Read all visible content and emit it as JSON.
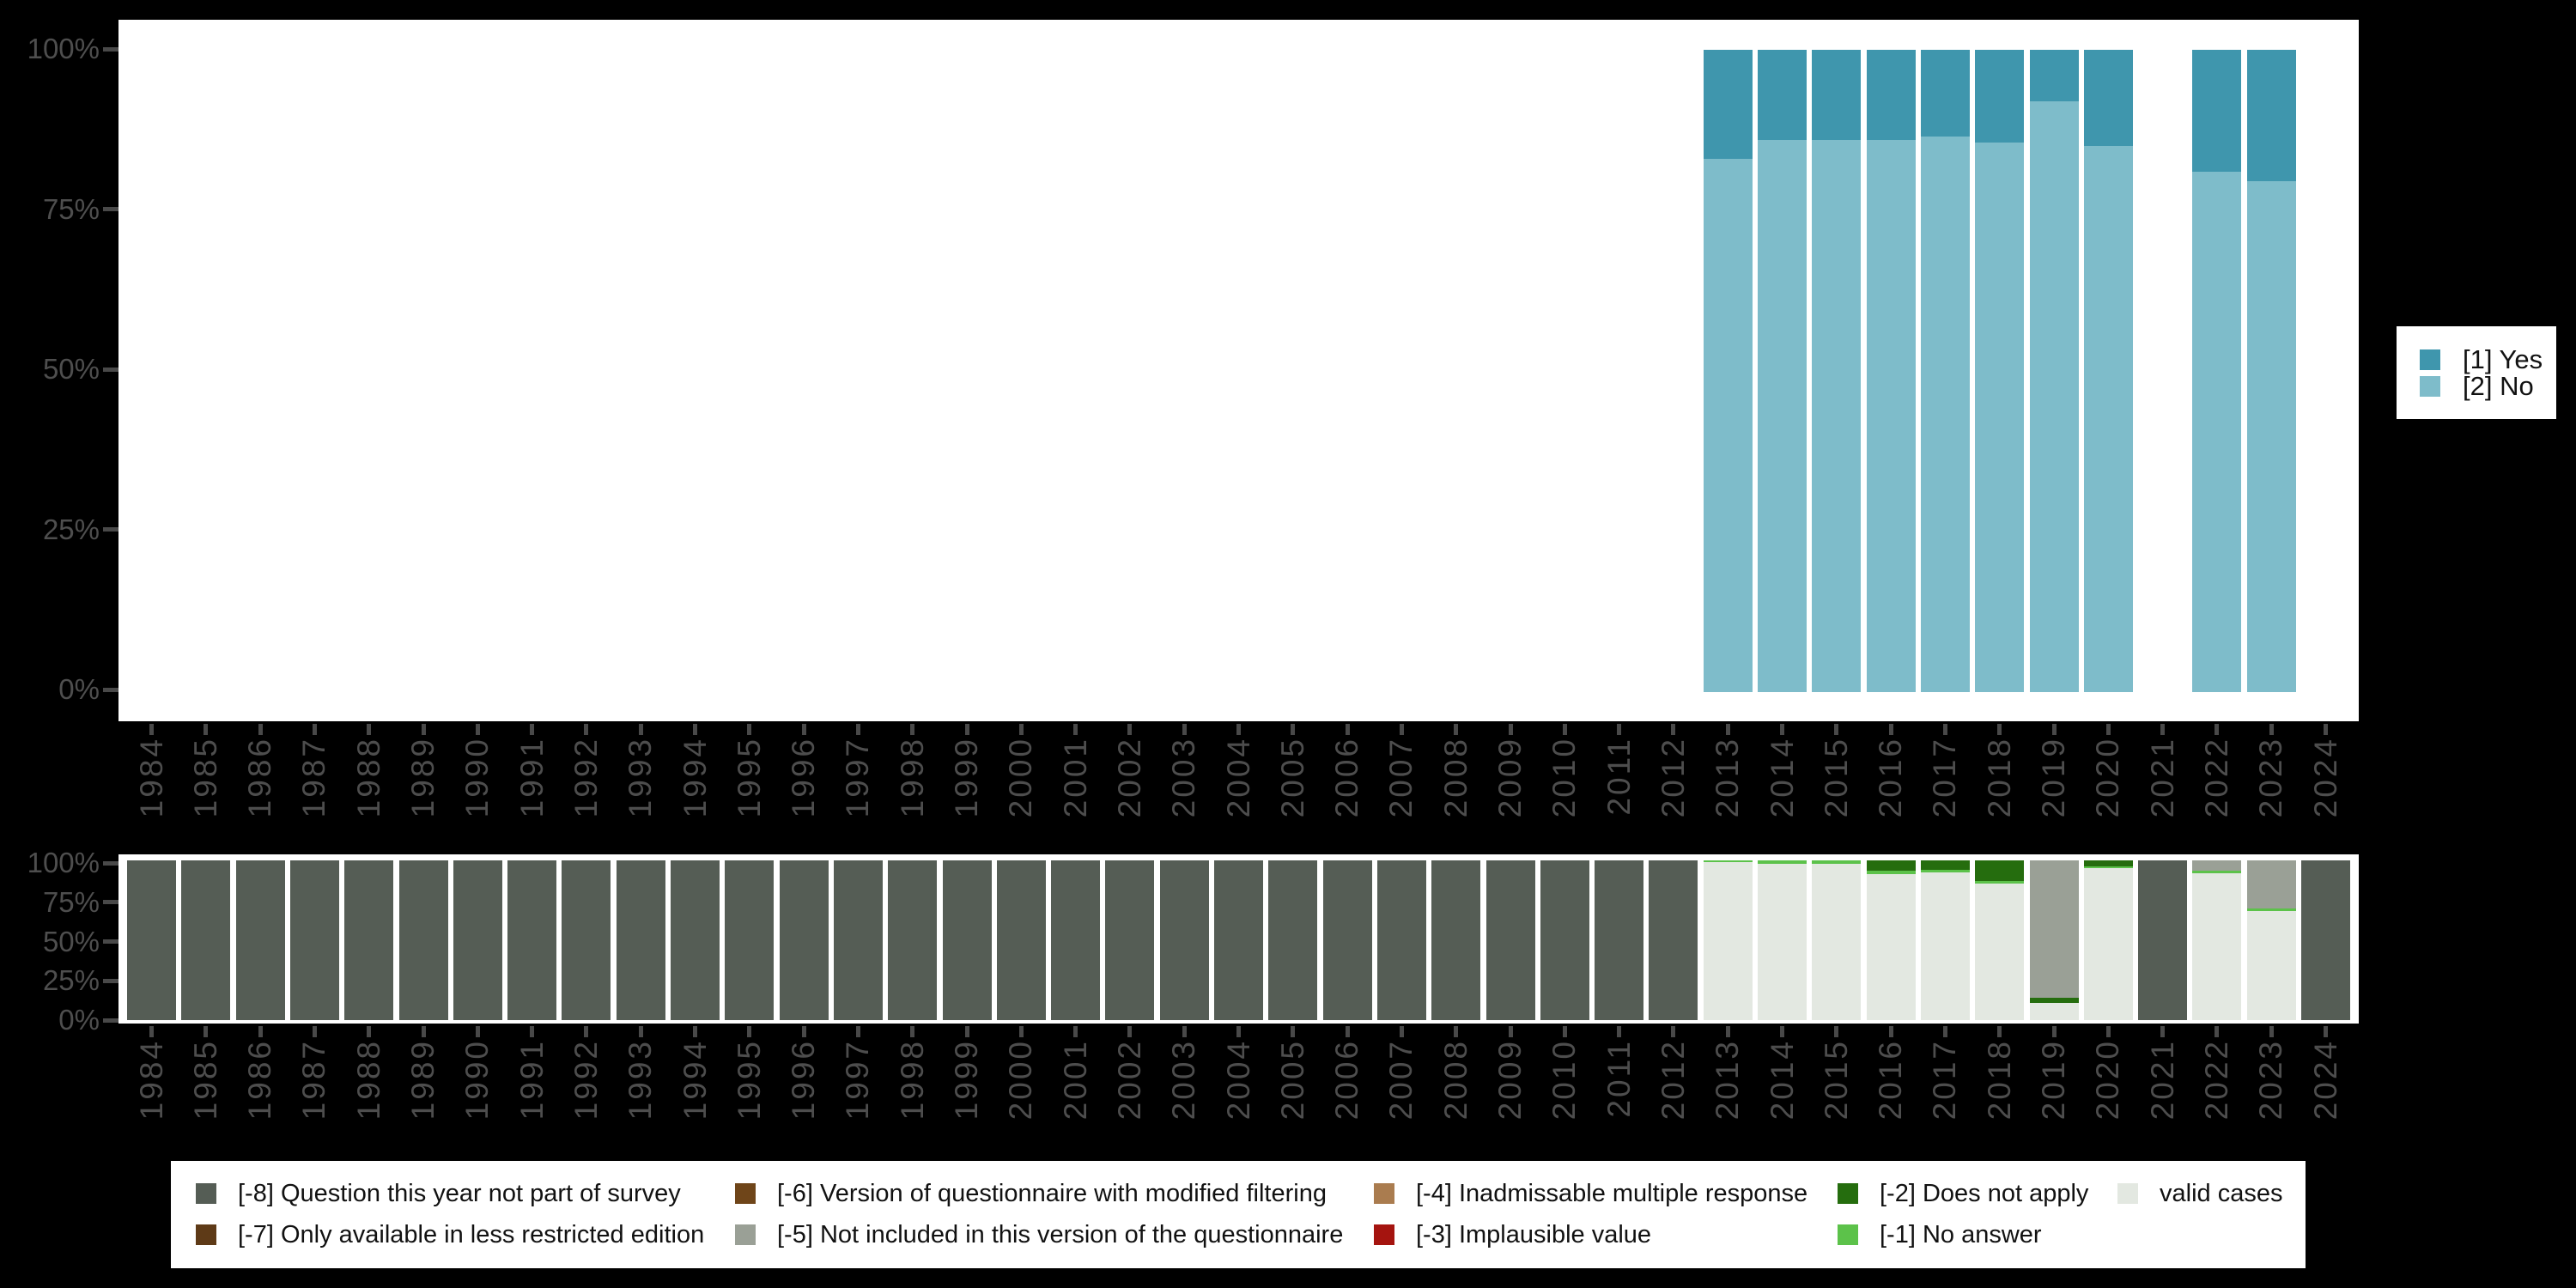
{
  "background": "#000000",
  "years": [
    "1984",
    "1985",
    "1986",
    "1987",
    "1988",
    "1989",
    "1990",
    "1991",
    "1992",
    "1993",
    "1994",
    "1995",
    "1996",
    "1997",
    "1998",
    "1999",
    "2000",
    "2001",
    "2002",
    "2003",
    "2004",
    "2005",
    "2006",
    "2007",
    "2008",
    "2009",
    "2010",
    "2011",
    "2012",
    "2013",
    "2014",
    "2015",
    "2016",
    "2017",
    "2018",
    "2019",
    "2020",
    "2021",
    "2022",
    "2023",
    "2024"
  ],
  "y_tick_labels": [
    "100%",
    "75%",
    "50%",
    "25%",
    "0%"
  ],
  "chart_data": [
    {
      "type": "bar",
      "stacked": true,
      "title": "",
      "xlabel": "",
      "ylabel": "",
      "ylim": [
        0,
        100
      ],
      "y_ticks": [
        "0%",
        "25%",
        "50%",
        "75%",
        "100%"
      ],
      "grid": false,
      "legend_position": "right",
      "categories": [
        "1984",
        "1985",
        "1986",
        "1987",
        "1988",
        "1989",
        "1990",
        "1991",
        "1992",
        "1993",
        "1994",
        "1995",
        "1996",
        "1997",
        "1998",
        "1999",
        "2000",
        "2001",
        "2002",
        "2003",
        "2004",
        "2005",
        "2006",
        "2007",
        "2008",
        "2009",
        "2010",
        "2011",
        "2012",
        "2013",
        "2014",
        "2015",
        "2016",
        "2017",
        "2018",
        "2019",
        "2020",
        "2021",
        "2022",
        "2023",
        "2024"
      ],
      "series": [
        {
          "name": "[1] Yes",
          "color": "#3f96ad",
          "values": [
            null,
            null,
            null,
            null,
            null,
            null,
            null,
            null,
            null,
            null,
            null,
            null,
            null,
            null,
            null,
            null,
            null,
            null,
            null,
            null,
            null,
            null,
            null,
            null,
            null,
            null,
            null,
            null,
            null,
            17,
            14,
            14,
            14,
            13.5,
            14.5,
            8,
            15,
            null,
            19,
            20.5,
            null
          ]
        },
        {
          "name": "[2] No",
          "color": "#7ebcca",
          "values": [
            null,
            null,
            null,
            null,
            null,
            null,
            null,
            null,
            null,
            null,
            null,
            null,
            null,
            null,
            null,
            null,
            null,
            null,
            null,
            null,
            null,
            null,
            null,
            null,
            null,
            null,
            null,
            null,
            null,
            83,
            86,
            86,
            86,
            86.5,
            85.5,
            92,
            85,
            null,
            81,
            79.5,
            null
          ]
        }
      ]
    },
    {
      "type": "bar",
      "stacked": true,
      "title": "",
      "xlabel": "",
      "ylabel": "",
      "ylim": [
        0,
        100
      ],
      "y_ticks": [
        "0%",
        "25%",
        "50%",
        "75%",
        "100%"
      ],
      "grid": false,
      "legend_position": "bottom",
      "categories": [
        "1984",
        "1985",
        "1986",
        "1987",
        "1988",
        "1989",
        "1990",
        "1991",
        "1992",
        "1993",
        "1994",
        "1995",
        "1996",
        "1997",
        "1998",
        "1999",
        "2000",
        "2001",
        "2002",
        "2003",
        "2004",
        "2005",
        "2006",
        "2007",
        "2008",
        "2009",
        "2010",
        "2011",
        "2012",
        "2013",
        "2014",
        "2015",
        "2016",
        "2017",
        "2018",
        "2019",
        "2020",
        "2021",
        "2022",
        "2023",
        "2024"
      ],
      "series": [
        {
          "name": "[-8] Question this year not part of survey",
          "color": "#555d55",
          "values": [
            100,
            100,
            100,
            100,
            100,
            100,
            100,
            100,
            100,
            100,
            100,
            100,
            100,
            100,
            100,
            100,
            100,
            100,
            100,
            100,
            100,
            100,
            100,
            100,
            100,
            100,
            100,
            100,
            100,
            0,
            0,
            0,
            0,
            0,
            0,
            0,
            0,
            100,
            0,
            0,
            100
          ]
        },
        {
          "name": "[-5] Not included in this version of the questionnaire",
          "color": "#9aa096",
          "values": [
            0,
            0,
            0,
            0,
            0,
            0,
            0,
            0,
            0,
            0,
            0,
            0,
            0,
            0,
            0,
            0,
            0,
            0,
            0,
            0,
            0,
            0,
            0,
            0,
            0,
            0,
            0,
            0,
            0,
            0,
            0,
            0,
            0,
            0,
            0,
            86,
            0,
            0,
            6.5,
            30,
            0
          ]
        },
        {
          "name": "[-2] Does not apply",
          "color": "#256d0e",
          "values": [
            0,
            0,
            0,
            0,
            0,
            0,
            0,
            0,
            0,
            0,
            0,
            0,
            0,
            0,
            0,
            0,
            0,
            0,
            0,
            0,
            0,
            0,
            0,
            0,
            0,
            0,
            0,
            0,
            0,
            0,
            0,
            0,
            6.5,
            6,
            13,
            3,
            3.5,
            0,
            0,
            0,
            0
          ]
        },
        {
          "name": "[-1] No answer",
          "color": "#5cc24a",
          "values": [
            0,
            0,
            0,
            0,
            0,
            0,
            0,
            0,
            0,
            0,
            0,
            0,
            0,
            0,
            0,
            0,
            0,
            0,
            0,
            0,
            0,
            0,
            0,
            0,
            0,
            0,
            0,
            0,
            0,
            1,
            2,
            2,
            2,
            1.5,
            1.5,
            0,
            1.5,
            0,
            1.5,
            1.5,
            0
          ]
        },
        {
          "name": "valid cases",
          "color": "#e3e8e1",
          "values": [
            0,
            0,
            0,
            0,
            0,
            0,
            0,
            0,
            0,
            0,
            0,
            0,
            0,
            0,
            0,
            0,
            0,
            0,
            0,
            0,
            0,
            0,
            0,
            0,
            0,
            0,
            0,
            0,
            0,
            99,
            98,
            98,
            91.5,
            92.5,
            85.5,
            11,
            95,
            0,
            92,
            68.5,
            0
          ]
        }
      ]
    }
  ],
  "legend_top": {
    "entries": [
      {
        "label": "[1] Yes",
        "color": "#3f96ad"
      },
      {
        "label": "[2] No",
        "color": "#7ebcca"
      }
    ]
  },
  "legend_bottom": {
    "columns": [
      [
        {
          "label": "[-8] Question this year not part of survey",
          "color": "#555d55"
        },
        {
          "label": "[-7] Only available in less restricted edition",
          "color": "#5e3a17"
        }
      ],
      [
        {
          "label": "[-6] Version of questionnaire with modified filtering",
          "color": "#6f4519"
        },
        {
          "label": "[-5] Not included in this version of the questionnaire",
          "color": "#9aa096"
        }
      ],
      [
        {
          "label": "[-4] Inadmissable multiple response",
          "color": "#aa7c4f"
        },
        {
          "label": "[-3] Implausible value",
          "color": "#a5140f"
        }
      ],
      [
        {
          "label": "[-2] Does not apply",
          "color": "#256d0e"
        },
        {
          "label": "[-1] No answer",
          "color": "#5cc24a"
        }
      ],
      [
        {
          "label": "valid cases",
          "color": "#e3e8e1"
        }
      ]
    ]
  }
}
